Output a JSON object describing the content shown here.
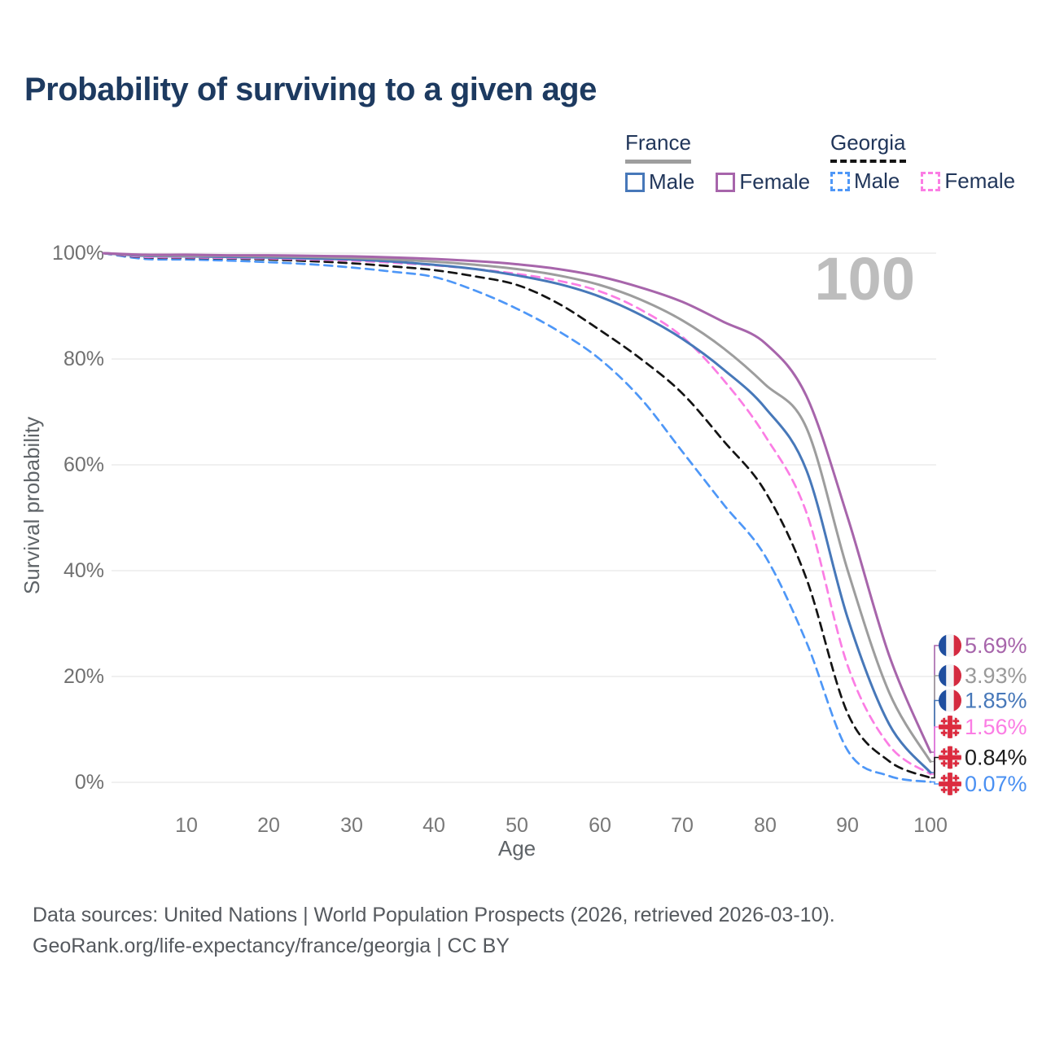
{
  "page": {
    "title": "Probability of surviving to a given age"
  },
  "watermark": "100",
  "legend": {
    "groups": [
      {
        "country": "France",
        "line_style": "solid",
        "items": [
          {
            "label": "Male"
          },
          {
            "label": "Female"
          }
        ]
      },
      {
        "country": "Georgia",
        "line_style": "dashed",
        "items": [
          {
            "label": "Male"
          },
          {
            "label": "Female"
          }
        ]
      }
    ]
  },
  "footer": {
    "line1": "Data sources: United Nations | World Population Prospects (2026, retrieved 2026-03-10).",
    "line2": "GeoRank.org/life-expectancy/france/georgia | CC BY"
  },
  "chart_data": {
    "type": "line",
    "title": "Probability of surviving to a given age",
    "xlabel": "Age",
    "ylabel": "Survival probability",
    "x_ticks": [
      10,
      20,
      30,
      40,
      50,
      60,
      70,
      80,
      90,
      100
    ],
    "y_ticks": [
      "0%",
      "20%",
      "40%",
      "60%",
      "80%",
      "100%"
    ],
    "xlim": [
      0,
      100
    ],
    "ylim": [
      0,
      100
    ],
    "grid": "horizontal",
    "legend_position": "top-right",
    "watermark_age": "100",
    "ages": [
      0,
      5,
      10,
      15,
      20,
      25,
      30,
      35,
      40,
      45,
      50,
      55,
      60,
      65,
      70,
      75,
      80,
      85,
      90,
      95,
      100
    ],
    "series": [
      {
        "id": "france-female",
        "country": "France",
        "sex": "Female",
        "style": "solid",
        "color": "#a765ab",
        "flag": "france",
        "end_label": "5.69%",
        "label_color": "#a765ab",
        "values": [
          100,
          99.7,
          99.7,
          99.6,
          99.6,
          99.5,
          99.4,
          99.2,
          98.9,
          98.5,
          97.9,
          97.0,
          95.6,
          93.5,
          90.8,
          87.0,
          83.0,
          73.0,
          50.0,
          24.0,
          5.69
        ]
      },
      {
        "id": "france-both",
        "country": "France",
        "sex": "Both sexes",
        "style": "solid",
        "color": "#9d9d9d",
        "flag": "france",
        "end_label": "3.93%",
        "label_color": "#9a9a9a",
        "values": [
          100,
          99.6,
          99.5,
          99.5,
          99.4,
          99.3,
          99.1,
          98.8,
          98.4,
          97.8,
          97.0,
          95.8,
          94.0,
          91.2,
          87.3,
          82.0,
          75.2,
          67.0,
          40.0,
          17.0,
          3.93
        ]
      },
      {
        "id": "france-male",
        "country": "France",
        "sex": "Male",
        "style": "solid",
        "color": "#4778b9",
        "flag": "france",
        "end_label": "1.85%",
        "label_color": "#4778b9",
        "values": [
          100,
          99.5,
          99.4,
          99.3,
          99.2,
          99.0,
          98.8,
          98.4,
          97.8,
          97.0,
          95.8,
          94.2,
          91.8,
          88.3,
          83.8,
          78.0,
          70.8,
          59.0,
          31.0,
          11.0,
          1.85
        ]
      },
      {
        "id": "georgia-female",
        "country": "Georgia",
        "sex": "Female",
        "style": "dashed",
        "color": "#fb7de4",
        "flag": "georgia",
        "end_label": "1.56%",
        "label_color": "#fb7de4",
        "values": [
          100,
          99.3,
          99.2,
          99.1,
          99.0,
          98.8,
          98.6,
          98.2,
          97.7,
          97.0,
          96.1,
          94.8,
          92.8,
          89.3,
          84.2,
          76.0,
          65.5,
          51.0,
          22.0,
          7.0,
          1.56
        ]
      },
      {
        "id": "georgia-both",
        "country": "Georgia",
        "sex": "Both sexes",
        "style": "dashed",
        "color": "#141414",
        "flag": "georgia",
        "end_label": "0.84%",
        "label_color": "#1c1c1c",
        "values": [
          100,
          99.2,
          99.1,
          99.0,
          98.8,
          98.5,
          98.1,
          97.5,
          96.8,
          95.6,
          94.0,
          90.5,
          85.5,
          80.0,
          73.5,
          64.5,
          55.0,
          38.5,
          13.0,
          4.0,
          0.84
        ]
      },
      {
        "id": "georgia-male",
        "country": "Georgia",
        "sex": "Male",
        "style": "dashed",
        "color": "#4e97f7",
        "flag": "georgia",
        "end_label": "0.07%",
        "label_color": "#4a90f2",
        "values": [
          100,
          98.9,
          98.8,
          98.6,
          98.3,
          97.9,
          97.3,
          96.5,
          95.5,
          92.9,
          89.5,
          85.3,
          80.0,
          72.5,
          62.5,
          52.5,
          42.8,
          26.5,
          6.0,
          1.2,
          0.07
        ]
      }
    ],
    "flag_colors": {
      "france": {
        "blue": "#1f4e9f",
        "white": "#f4f4f6",
        "red": "#d42a40"
      },
      "georgia": {
        "bg": "#f2f2f3",
        "red": "#dc2b3f"
      }
    }
  }
}
